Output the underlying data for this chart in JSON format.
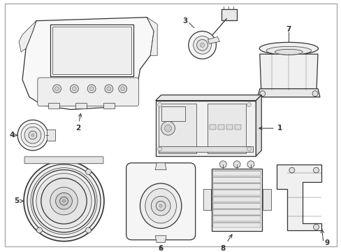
{
  "bg_color": "#ffffff",
  "line_color": "#333333",
  "label_color": "#000000",
  "border_color": "#aaaaaa",
  "figsize": [
    4.89,
    3.6
  ],
  "dpi": 100
}
